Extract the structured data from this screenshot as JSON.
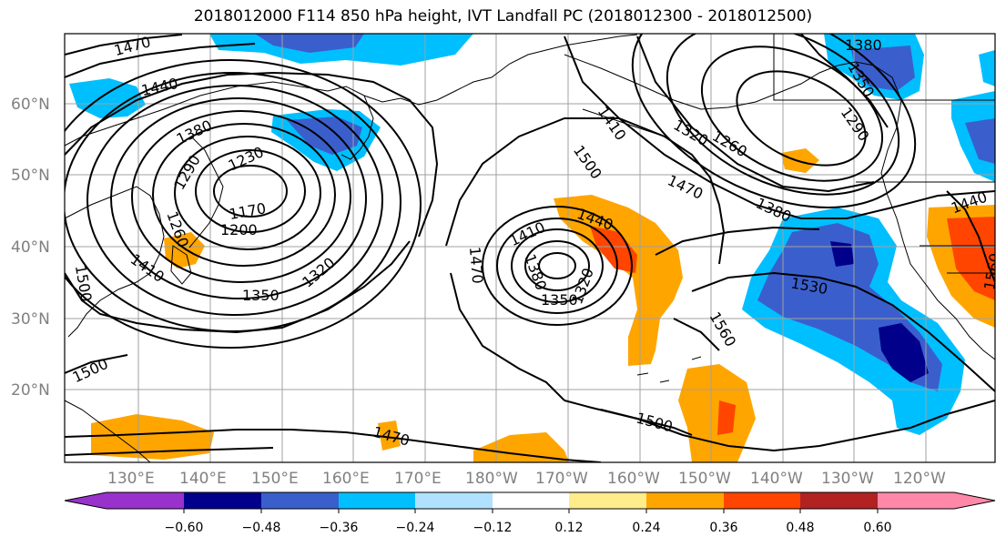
{
  "title": "2018012000 F114 850 hPa height, IVT Landfall PC (2018012300 - 2018012500)",
  "lon_labels": [
    "130°E",
    "140°E",
    "150°E",
    "160°E",
    "170°E",
    "180°W",
    "170°W",
    "160°W",
    "150°W",
    "140°W",
    "130°W",
    "120°W"
  ],
  "lat_labels": [
    "60°N",
    "50°N",
    "40°N",
    "30°N",
    "20°N"
  ],
  "colorbar": {
    "ticks": [
      "−0.60",
      "−0.48",
      "−0.36",
      "−0.24",
      "−0.12",
      "0.12",
      "0.24",
      "0.36",
      "0.48",
      "0.60"
    ],
    "colors": [
      "#9932cc",
      "#00008b",
      "#3a5fcd",
      "#00bfff",
      "#b0e2ff",
      "#ffffff",
      "#ffec8b",
      "#ffa500",
      "#ff4500",
      "#b22222",
      "#ff88a8"
    ]
  },
  "contour_labels": [
    {
      "text": "1470",
      "name": "contour-label-1470-nw"
    },
    {
      "text": "1440",
      "name": "contour-label-1440-nw"
    },
    {
      "text": "1380",
      "name": "contour-label-1380-w"
    },
    {
      "text": "1290",
      "name": "contour-label-1290"
    },
    {
      "text": "1230",
      "name": "contour-label-1230"
    },
    {
      "text": "1170",
      "name": "contour-label-1170"
    },
    {
      "text": "1200",
      "name": "contour-label-1200"
    },
    {
      "text": "1260",
      "name": "contour-label-1260-w"
    },
    {
      "text": "1410",
      "name": "contour-label-1410-w"
    },
    {
      "text": "1500",
      "name": "contour-label-1500-w"
    },
    {
      "text": "1350",
      "name": "contour-label-1350-w"
    },
    {
      "text": "1320",
      "name": "contour-label-1320-w"
    },
    {
      "text": "1500",
      "name": "contour-label-1500-sw"
    },
    {
      "text": "1470",
      "name": "contour-label-1470-center"
    },
    {
      "text": "1410",
      "name": "contour-label-1410-center"
    },
    {
      "text": "1380",
      "name": "contour-label-1380-center"
    },
    {
      "text": "1350",
      "name": "contour-label-1350-center"
    },
    {
      "text": "1320",
      "name": "contour-label-1320-center"
    },
    {
      "text": "1440",
      "name": "contour-label-1440-center"
    },
    {
      "text": "1500",
      "name": "contour-label-1500-center"
    },
    {
      "text": "1410",
      "name": "contour-label-1410-ne"
    },
    {
      "text": "1320",
      "name": "contour-label-1320-ne"
    },
    {
      "text": "1260",
      "name": "contour-label-1260-ne"
    },
    {
      "text": "1290",
      "name": "contour-label-1290-ne"
    },
    {
      "text": "1350",
      "name": "contour-label-1350-ne"
    },
    {
      "text": "1380",
      "name": "contour-label-1380-ne"
    },
    {
      "text": "1470",
      "name": "contour-label-1470-e"
    },
    {
      "text": "1380",
      "name": "contour-label-1380-e"
    },
    {
      "text": "1530",
      "name": "contour-label-1530"
    },
    {
      "text": "1560",
      "name": "contour-label-1560"
    },
    {
      "text": "1440",
      "name": "contour-label-1440-e"
    },
    {
      "text": "1560",
      "name": "contour-label-1560-e"
    },
    {
      "text": "1500",
      "name": "contour-label-1500-s"
    },
    {
      "text": "1470",
      "name": "contour-label-1470-s"
    }
  ]
}
